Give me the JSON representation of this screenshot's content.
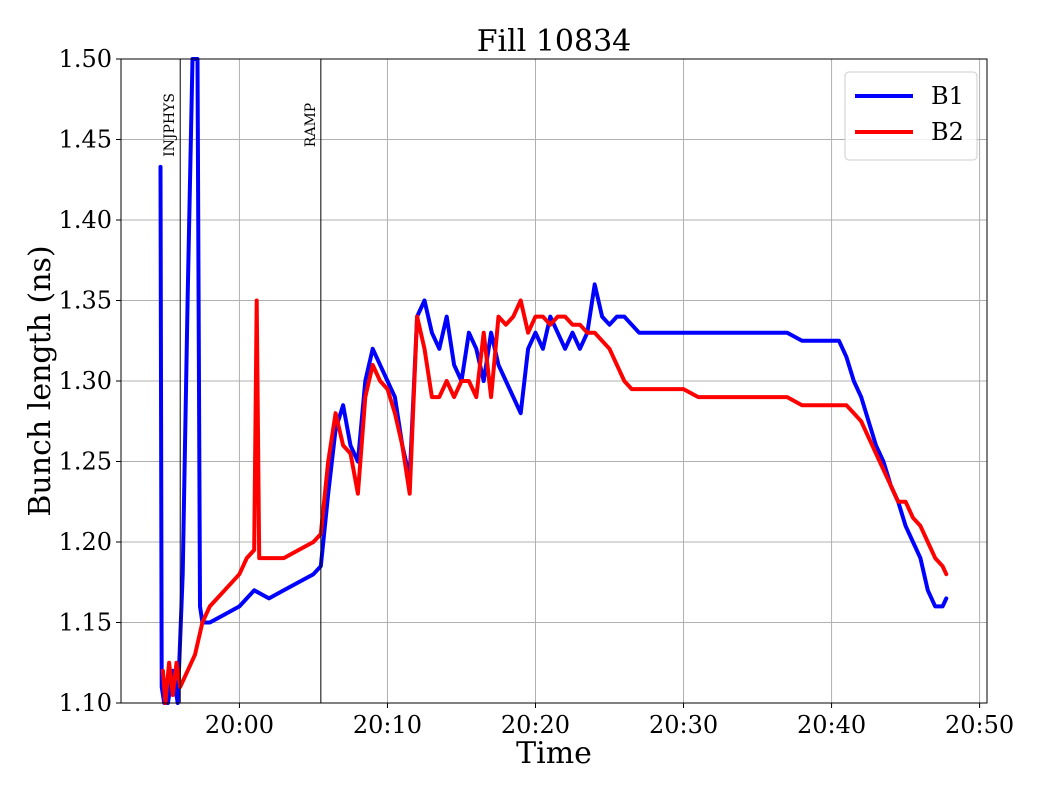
{
  "chart_data": {
    "type": "line",
    "title": "Fill 10834",
    "xlabel": "Time",
    "ylabel": "Bunch length (ns)",
    "x_unit": "time of day (HH:MM)",
    "xlim": [
      "19:52:00",
      "20:50:30"
    ],
    "ylim": [
      1.1,
      1.5
    ],
    "x_ticks": [
      "20:00",
      "20:10",
      "20:20",
      "20:30",
      "20:40",
      "20:50"
    ],
    "y_ticks": [
      "1.10",
      "1.15",
      "1.20",
      "1.25",
      "1.30",
      "1.35",
      "1.40",
      "1.45",
      "1.50"
    ],
    "y_tick_values": [
      1.1,
      1.15,
      1.2,
      1.25,
      1.3,
      1.35,
      1.4,
      1.45,
      1.5
    ],
    "grid": true,
    "legend_position": "top-right",
    "events": [
      {
        "label": "INJPHYS",
        "x": "19:56:00"
      },
      {
        "label": "RAMP",
        "x": "20:05:30"
      }
    ],
    "series": [
      {
        "name": "B1",
        "color": "#0000ff",
        "x": [
          "19:54:40",
          "19:54:45",
          "19:54:55",
          "19:55:10",
          "19:55:30",
          "19:55:50",
          "19:56:10",
          "19:56:30",
          "19:56:50",
          "19:57:10",
          "19:57:20",
          "19:57:30",
          "19:58:00",
          "19:59:00",
          "20:00:00",
          "20:01:00",
          "20:02:00",
          "20:03:00",
          "20:04:00",
          "20:05:00",
          "20:05:30",
          "20:06:00",
          "20:06:30",
          "20:07:00",
          "20:07:30",
          "20:08:00",
          "20:08:30",
          "20:09:00",
          "20:09:30",
          "20:10:00",
          "20:10:30",
          "20:11:00",
          "20:11:30",
          "20:12:00",
          "20:12:30",
          "20:13:00",
          "20:13:30",
          "20:14:00",
          "20:14:30",
          "20:15:00",
          "20:15:30",
          "20:16:00",
          "20:16:30",
          "20:17:00",
          "20:17:30",
          "20:18:00",
          "20:18:30",
          "20:19:00",
          "20:19:30",
          "20:20:00",
          "20:20:30",
          "20:21:00",
          "20:21:30",
          "20:22:00",
          "20:22:30",
          "20:23:00",
          "20:23:30",
          "20:24:00",
          "20:24:30",
          "20:25:00",
          "20:25:30",
          "20:26:00",
          "20:26:30",
          "20:27:00",
          "20:28:00",
          "20:29:00",
          "20:30:00",
          "20:31:00",
          "20:32:00",
          "20:33:00",
          "20:34:00",
          "20:35:00",
          "20:36:00",
          "20:37:00",
          "20:38:00",
          "20:39:00",
          "20:40:00",
          "20:40:30",
          "20:41:00",
          "20:41:30",
          "20:42:00",
          "20:42:30",
          "20:43:00",
          "20:43:30",
          "20:44:00",
          "20:44:30",
          "20:45:00",
          "20:45:30",
          "20:46:00",
          "20:46:30",
          "20:47:00",
          "20:47:30",
          "20:47:45"
        ],
        "y": [
          1.433,
          1.11,
          1.1,
          1.1,
          1.12,
          1.1,
          1.18,
          1.35,
          1.5,
          1.5,
          1.16,
          1.15,
          1.15,
          1.155,
          1.16,
          1.17,
          1.165,
          1.17,
          1.175,
          1.18,
          1.185,
          1.23,
          1.27,
          1.285,
          1.26,
          1.25,
          1.3,
          1.32,
          1.31,
          1.3,
          1.29,
          1.26,
          1.24,
          1.34,
          1.35,
          1.33,
          1.32,
          1.34,
          1.31,
          1.3,
          1.33,
          1.32,
          1.3,
          1.33,
          1.31,
          1.3,
          1.29,
          1.28,
          1.32,
          1.33,
          1.32,
          1.34,
          1.33,
          1.32,
          1.33,
          1.32,
          1.33,
          1.36,
          1.34,
          1.335,
          1.34,
          1.34,
          1.335,
          1.33,
          1.33,
          1.33,
          1.33,
          1.33,
          1.33,
          1.33,
          1.33,
          1.33,
          1.33,
          1.33,
          1.325,
          1.325,
          1.325,
          1.325,
          1.315,
          1.3,
          1.29,
          1.275,
          1.26,
          1.25,
          1.235,
          1.225,
          1.21,
          1.2,
          1.19,
          1.17,
          1.16,
          1.16,
          1.165
        ]
      },
      {
        "name": "B2",
        "color": "#ff0000",
        "x": [
          "19:54:50",
          "19:55:00",
          "19:55:15",
          "19:55:30",
          "19:55:45",
          "19:56:00",
          "19:56:30",
          "19:57:00",
          "19:57:30",
          "19:58:00",
          "19:59:00",
          "20:00:00",
          "20:00:30",
          "20:01:00",
          "20:01:10",
          "20:01:20",
          "20:02:00",
          "20:03:00",
          "20:04:00",
          "20:05:00",
          "20:05:30",
          "20:06:00",
          "20:06:30",
          "20:07:00",
          "20:07:30",
          "20:08:00",
          "20:08:30",
          "20:09:00",
          "20:09:30",
          "20:10:00",
          "20:10:30",
          "20:11:00",
          "20:11:30",
          "20:12:00",
          "20:12:30",
          "20:13:00",
          "20:13:30",
          "20:14:00",
          "20:14:30",
          "20:15:00",
          "20:15:30",
          "20:16:00",
          "20:16:30",
          "20:17:00",
          "20:17:30",
          "20:18:00",
          "20:18:30",
          "20:19:00",
          "20:19:30",
          "20:20:00",
          "20:20:30",
          "20:21:00",
          "20:21:30",
          "20:22:00",
          "20:22:30",
          "20:23:00",
          "20:23:30",
          "20:24:00",
          "20:24:30",
          "20:25:00",
          "20:25:30",
          "20:26:00",
          "20:26:30",
          "20:27:00",
          "20:28:00",
          "20:29:00",
          "20:30:00",
          "20:31:00",
          "20:32:00",
          "20:33:00",
          "20:34:00",
          "20:35:00",
          "20:36:00",
          "20:37:00",
          "20:38:00",
          "20:39:00",
          "20:40:00",
          "20:40:30",
          "20:41:00",
          "20:41:30",
          "20:42:00",
          "20:42:30",
          "20:43:00",
          "20:43:30",
          "20:44:00",
          "20:44:30",
          "20:45:00",
          "20:45:30",
          "20:46:00",
          "20:46:30",
          "20:47:00",
          "20:47:30",
          "20:47:45"
        ],
        "y": [
          1.12,
          1.1,
          1.125,
          1.105,
          1.125,
          1.11,
          1.12,
          1.13,
          1.15,
          1.16,
          1.17,
          1.18,
          1.19,
          1.195,
          1.35,
          1.19,
          1.19,
          1.19,
          1.195,
          1.2,
          1.205,
          1.25,
          1.28,
          1.26,
          1.255,
          1.23,
          1.29,
          1.31,
          1.3,
          1.295,
          1.28,
          1.26,
          1.23,
          1.34,
          1.32,
          1.29,
          1.29,
          1.3,
          1.29,
          1.3,
          1.3,
          1.29,
          1.33,
          1.29,
          1.34,
          1.335,
          1.34,
          1.35,
          1.33,
          1.34,
          1.34,
          1.335,
          1.34,
          1.34,
          1.335,
          1.335,
          1.33,
          1.33,
          1.325,
          1.32,
          1.31,
          1.3,
          1.295,
          1.295,
          1.295,
          1.295,
          1.295,
          1.29,
          1.29,
          1.29,
          1.29,
          1.29,
          1.29,
          1.29,
          1.285,
          1.285,
          1.285,
          1.285,
          1.285,
          1.28,
          1.275,
          1.265,
          1.255,
          1.245,
          1.235,
          1.225,
          1.225,
          1.215,
          1.21,
          1.2,
          1.19,
          1.185,
          1.18
        ]
      }
    ]
  }
}
